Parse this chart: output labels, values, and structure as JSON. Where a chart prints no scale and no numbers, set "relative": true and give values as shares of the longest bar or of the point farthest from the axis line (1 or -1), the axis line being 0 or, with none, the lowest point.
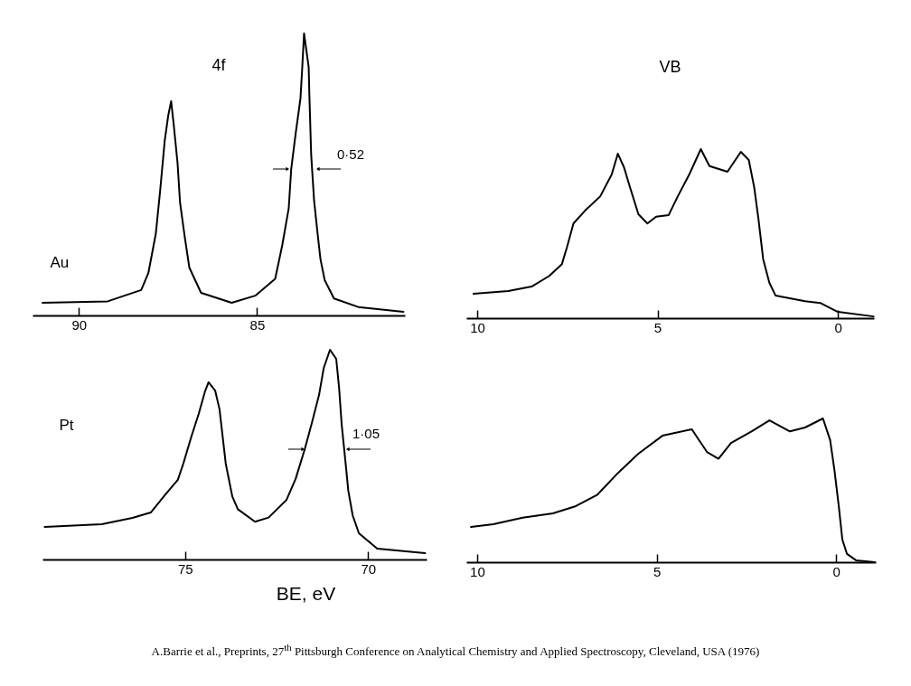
{
  "chart_data": [
    {
      "type": "line",
      "title": "4f",
      "ylabel": "Au",
      "relative": true,
      "xlim": [
        91.3,
        80.85
      ],
      "xticks": [
        90,
        85
      ],
      "x": [
        91.02,
        89.19,
        88.25,
        88.05,
        87.84,
        87.72,
        87.59,
        87.49,
        87.41,
        87.34,
        87.23,
        87.16,
        87.03,
        86.9,
        86.57,
        85.71,
        85.05,
        84.49,
        84.29,
        84.11,
        84.04,
        83.91,
        83.78,
        83.73,
        83.68,
        83.55,
        83.53,
        83.48,
        83.4,
        83.3,
        83.22,
        83.1,
        82.84,
        82.16,
        80.89
      ],
      "series": [
        {
          "color": "#000000",
          "values": [
            0.045,
            0.05,
            0.09,
            0.15,
            0.29,
            0.44,
            0.62,
            0.71,
            0.76,
            0.68,
            0.54,
            0.4,
            0.28,
            0.17,
            0.08,
            0.045,
            0.07,
            0.13,
            0.25,
            0.38,
            0.52,
            0.65,
            0.77,
            0.88,
            1,
            0.88,
            0.78,
            0.57,
            0.41,
            0.29,
            0.2,
            0.125,
            0.06,
            0.03,
            0.013
          ]
        }
      ],
      "annotations": [
        "0·52"
      ]
    },
    {
      "type": "line",
      "title": "VB",
      "relative": true,
      "xlim": [
        10.3,
        -1.0
      ],
      "xticks": [
        10,
        5,
        0
      ],
      "x": [
        10.1,
        9.14,
        8.49,
        8.0,
        7.65,
        7.51,
        7.33,
        7.01,
        6.59,
        6.27,
        6.1,
        5.93,
        5.78,
        5.53,
        5.28,
        5.04,
        4.69,
        4.44,
        4.12,
        3.8,
        3.56,
        3.06,
        2.69,
        2.47,
        2.32,
        2.2,
        2.07,
        1.9,
        1.73,
        0.91,
        0.49,
        0,
        -0.99
      ],
      "series": [
        {
          "color": "#000000",
          "values": [
            0.144,
            0.16,
            0.187,
            0.25,
            0.32,
            0.42,
            0.56,
            0.636,
            0.72,
            0.85,
            0.973,
            0.893,
            0.786,
            0.615,
            0.56,
            0.6,
            0.61,
            0.72,
            0.85,
            1,
            0.9,
            0.866,
            0.984,
            0.936,
            0.775,
            0.583,
            0.348,
            0.21,
            0.134,
            0.1,
            0.09,
            0.037,
            0.01
          ]
        }
      ]
    },
    {
      "type": "line",
      "ylabel": "Pt",
      "xlabel": "BE, eV",
      "relative": true,
      "xlim": [
        78.9,
        68.4
      ],
      "xticks": [
        75,
        70
      ],
      "x": [
        78.84,
        77.28,
        76.44,
        75.94,
        75.54,
        75.2,
        75.05,
        74.83,
        74.63,
        74.46,
        74.36,
        74.18,
        74.06,
        73.89,
        73.71,
        73.56,
        73.09,
        72.72,
        72.23,
        71.98,
        71.73,
        71.53,
        71.34,
        71.21,
        71.04,
        70.87,
        70.79,
        70.72,
        70.62,
        70.54,
        70.42,
        70.25,
        69.75,
        68.44
      ],
      "series": [
        {
          "color": "#000000",
          "values": [
            0.155,
            0.168,
            0.198,
            0.224,
            0.31,
            0.38,
            0.457,
            0.586,
            0.694,
            0.8,
            0.845,
            0.806,
            0.716,
            0.457,
            0.3,
            0.24,
            0.18,
            0.2,
            0.284,
            0.384,
            0.526,
            0.655,
            0.784,
            0.914,
            1,
            0.957,
            0.815,
            0.642,
            0.47,
            0.328,
            0.21,
            0.125,
            0.052,
            0.03
          ]
        }
      ],
      "annotations": [
        "1·05"
      ]
    },
    {
      "type": "line",
      "relative": true,
      "xlim": [
        10.3,
        -1.1
      ],
      "xticks": [
        10,
        5,
        0
      ],
      "x": [
        10.17,
        9.55,
        8.73,
        7.89,
        7.25,
        6.65,
        6.08,
        5.51,
        4.84,
        4.02,
        3.85,
        3.6,
        3.28,
        2.93,
        2.36,
        1.86,
        1.29,
        0.87,
        0.37,
        0.17,
        0.05,
        -0.07,
        -0.17,
        -0.3,
        -0.55,
        -1.07
      ],
      "series": [
        {
          "color": "#000000",
          "values": [
            0.245,
            0.264,
            0.31,
            0.34,
            0.39,
            0.47,
            0.62,
            0.755,
            0.88,
            0.925,
            0.86,
            0.767,
            0.72,
            0.83,
            0.91,
            0.987,
            0.91,
            0.937,
            1,
            0.85,
            0.64,
            0.39,
            0.157,
            0.057,
            0.013,
            0
          ]
        }
      ],
      "annotations": [
        "A.Barrie et al., Preprints, 27$^{th}$ Pittsburgh Conference on Analytical Chemistry and Applied Spectroscopy, Cleveland, USA (1976)"
      ]
    }
  ]
}
